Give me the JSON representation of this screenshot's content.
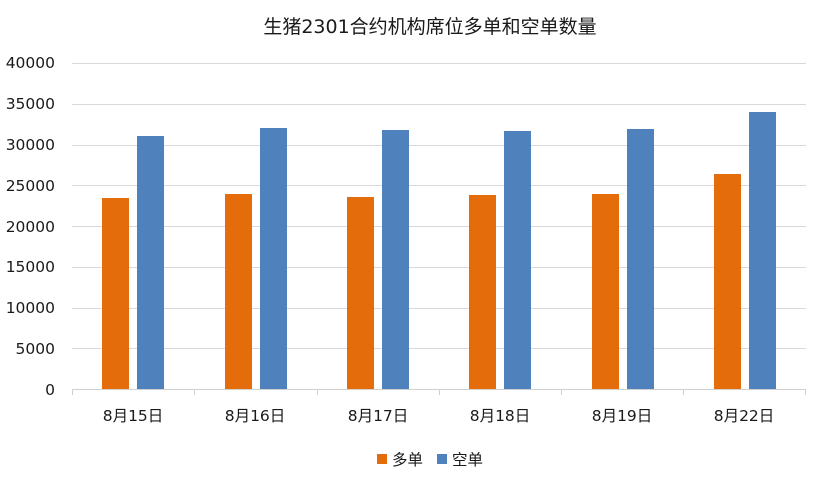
{
  "chart_data": {
    "type": "bar",
    "title": "生猪2301合约机构席位多单和空单数量",
    "categories": [
      "8月15日",
      "8月16日",
      "8月17日",
      "8月18日",
      "8月19日",
      "8月22日"
    ],
    "series": [
      {
        "name": "多单",
        "color": "#E46C0A",
        "values": [
          23400,
          23900,
          23600,
          23800,
          23900,
          26400
        ]
      },
      {
        "name": "空单",
        "color": "#4F81BD",
        "values": [
          31000,
          32000,
          31800,
          31700,
          31900,
          34000
        ]
      }
    ],
    "xlabel": "",
    "ylabel": "",
    "ylim": [
      0,
      40000
    ],
    "yticks": [
      "0",
      "5000",
      "10000",
      "15000",
      "20000",
      "25000",
      "30000",
      "35000",
      "40000"
    ],
    "grid": true,
    "legend_position": "bottom"
  }
}
